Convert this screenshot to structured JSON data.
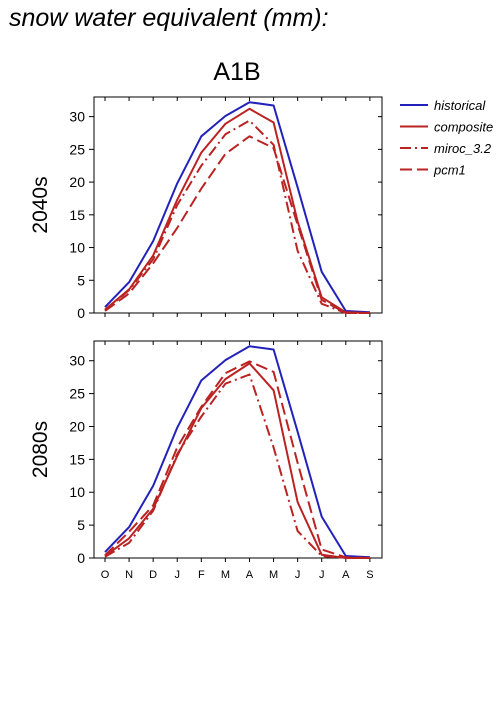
{
  "page": {
    "title": "snow water equivalent (mm):"
  },
  "chart_data": {
    "type": "line",
    "title": "A1B",
    "categories": [
      "O",
      "N",
      "D",
      "J",
      "F",
      "M",
      "A",
      "M",
      "J",
      "J",
      "A",
      "S"
    ],
    "ylim": [
      0,
      33
    ],
    "yticks": [
      0,
      5,
      10,
      15,
      20,
      25,
      30
    ],
    "legend": {
      "placement": "top-right, outside plot"
    },
    "style": {
      "historical": {
        "color": "#2222bb",
        "dash": "solid"
      },
      "composite": {
        "color": "#bb2222",
        "dash": "solid"
      },
      "miroc_3.2": {
        "color": "#bb2222",
        "dash": "dash-dot"
      },
      "pcm1": {
        "color": "#bb2222",
        "dash": "long-dash"
      }
    },
    "panels": [
      {
        "ylabel": "2040s",
        "series": [
          {
            "name": "historical",
            "values": [
              0.9,
              4.7,
              11.0,
              19.8,
              27.0,
              30.1,
              32.2,
              31.7,
              19.2,
              6.3,
              0.3,
              0.1
            ]
          },
          {
            "name": "composite",
            "values": [
              0.5,
              3.6,
              8.8,
              17.3,
              24.5,
              28.9,
              31.2,
              29.1,
              14.0,
              2.4,
              0.1,
              0.0
            ]
          },
          {
            "name": "miroc_3.2",
            "values": [
              0.4,
              3.5,
              8.2,
              16.5,
              22.5,
              27.3,
              29.4,
              25.7,
              9.5,
              1.4,
              0.0,
              0.0
            ]
          },
          {
            "name": "pcm1",
            "values": [
              0.3,
              3.0,
              7.6,
              13.0,
              19.0,
              24.3,
              27.0,
              25.2,
              13.5,
              2.0,
              0.0,
              0.0
            ]
          }
        ]
      },
      {
        "ylabel": "2080s",
        "series": [
          {
            "name": "historical",
            "values": [
              0.9,
              4.7,
              11.0,
              19.8,
              27.0,
              30.1,
              32.2,
              31.7,
              19.2,
              6.3,
              0.3,
              0.1
            ]
          },
          {
            "name": "composite",
            "values": [
              0.3,
              3.0,
              7.5,
              15.5,
              22.8,
              27.2,
              29.6,
              25.5,
              8.5,
              0.5,
              0.0,
              0.0
            ]
          },
          {
            "name": "miroc_3.2",
            "values": [
              0.2,
              2.3,
              7.2,
              15.8,
              21.5,
              26.5,
              27.9,
              16.8,
              4.1,
              0.3,
              0.0,
              0.0
            ]
          },
          {
            "name": "pcm1",
            "values": [
              0.4,
              4.0,
              8.0,
              16.8,
              23.0,
              28.1,
              29.9,
              28.3,
              14.5,
              1.3,
              0.1,
              0.0
            ]
          }
        ]
      }
    ]
  }
}
